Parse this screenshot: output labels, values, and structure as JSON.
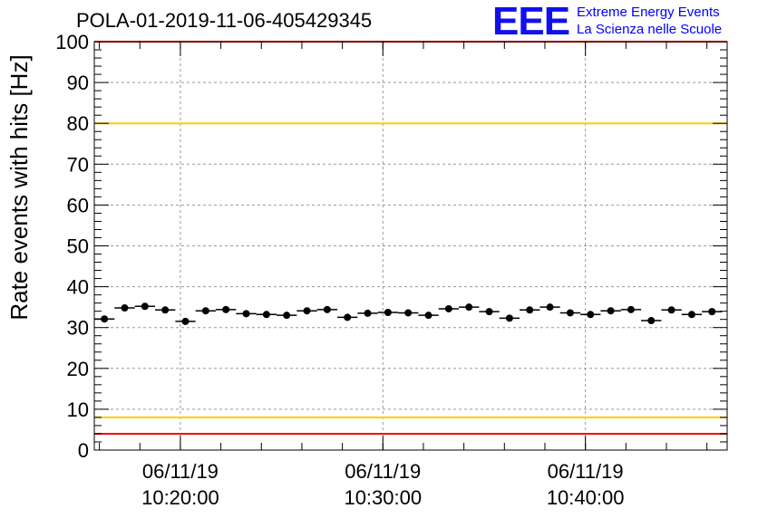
{
  "title": "POLA-01-2019-11-06-405429345",
  "logo": {
    "letters": "EEE",
    "line1": "Extreme Energy Events",
    "line2": "La Scienza nelle Scuole",
    "color": "#0000ff"
  },
  "chart_data": {
    "type": "scatter",
    "title": "POLA-01-2019-11-06-405429345",
    "xlabel": "",
    "ylabel": "Rate events with hits [Hz]",
    "ylim": [
      0,
      100
    ],
    "yticks": [
      0,
      10,
      20,
      30,
      40,
      50,
      60,
      70,
      80,
      90,
      100
    ],
    "xlim": [
      "06/11/19 10:15:45",
      "06/11/19 10:47:00"
    ],
    "xticks": [
      {
        "date": "06/11/19",
        "time": "10:20:00"
      },
      {
        "date": "06/11/19",
        "time": "10:30:00"
      },
      {
        "date": "06/11/19",
        "time": "10:40:00"
      }
    ],
    "grid": true,
    "points": {
      "x": [
        "10:16:15",
        "10:17:15",
        "10:18:15",
        "10:19:15",
        "10:20:15",
        "10:21:15",
        "10:22:15",
        "10:23:15",
        "10:24:15",
        "10:25:15",
        "10:26:15",
        "10:27:15",
        "10:28:15",
        "10:29:15",
        "10:30:15",
        "10:31:15",
        "10:32:15",
        "10:33:15",
        "10:34:15",
        "10:35:15",
        "10:36:15",
        "10:37:15",
        "10:38:15",
        "10:39:15",
        "10:40:15",
        "10:41:15",
        "10:42:15",
        "10:43:15",
        "10:44:15",
        "10:45:15",
        "10:46:15"
      ],
      "y": [
        32.1,
        34.8,
        35.2,
        34.3,
        31.5,
        34.1,
        34.4,
        33.4,
        33.2,
        33.0,
        34.1,
        34.4,
        32.5,
        33.5,
        33.7,
        33.6,
        33.0,
        34.6,
        35.0,
        33.9,
        32.3,
        34.3,
        35.0,
        33.6,
        33.2,
        34.1,
        34.4,
        31.7,
        34.3,
        33.2,
        33.9
      ],
      "xerr_minutes": 0.5
    },
    "reference_lines": [
      {
        "y": 100,
        "color": "#ff0000"
      },
      {
        "y": 80,
        "color": "#ffcc00"
      },
      {
        "y": 8,
        "color": "#ffcc00"
      },
      {
        "y": 4,
        "color": "#ff0000"
      }
    ],
    "marker_color": "#000000"
  }
}
